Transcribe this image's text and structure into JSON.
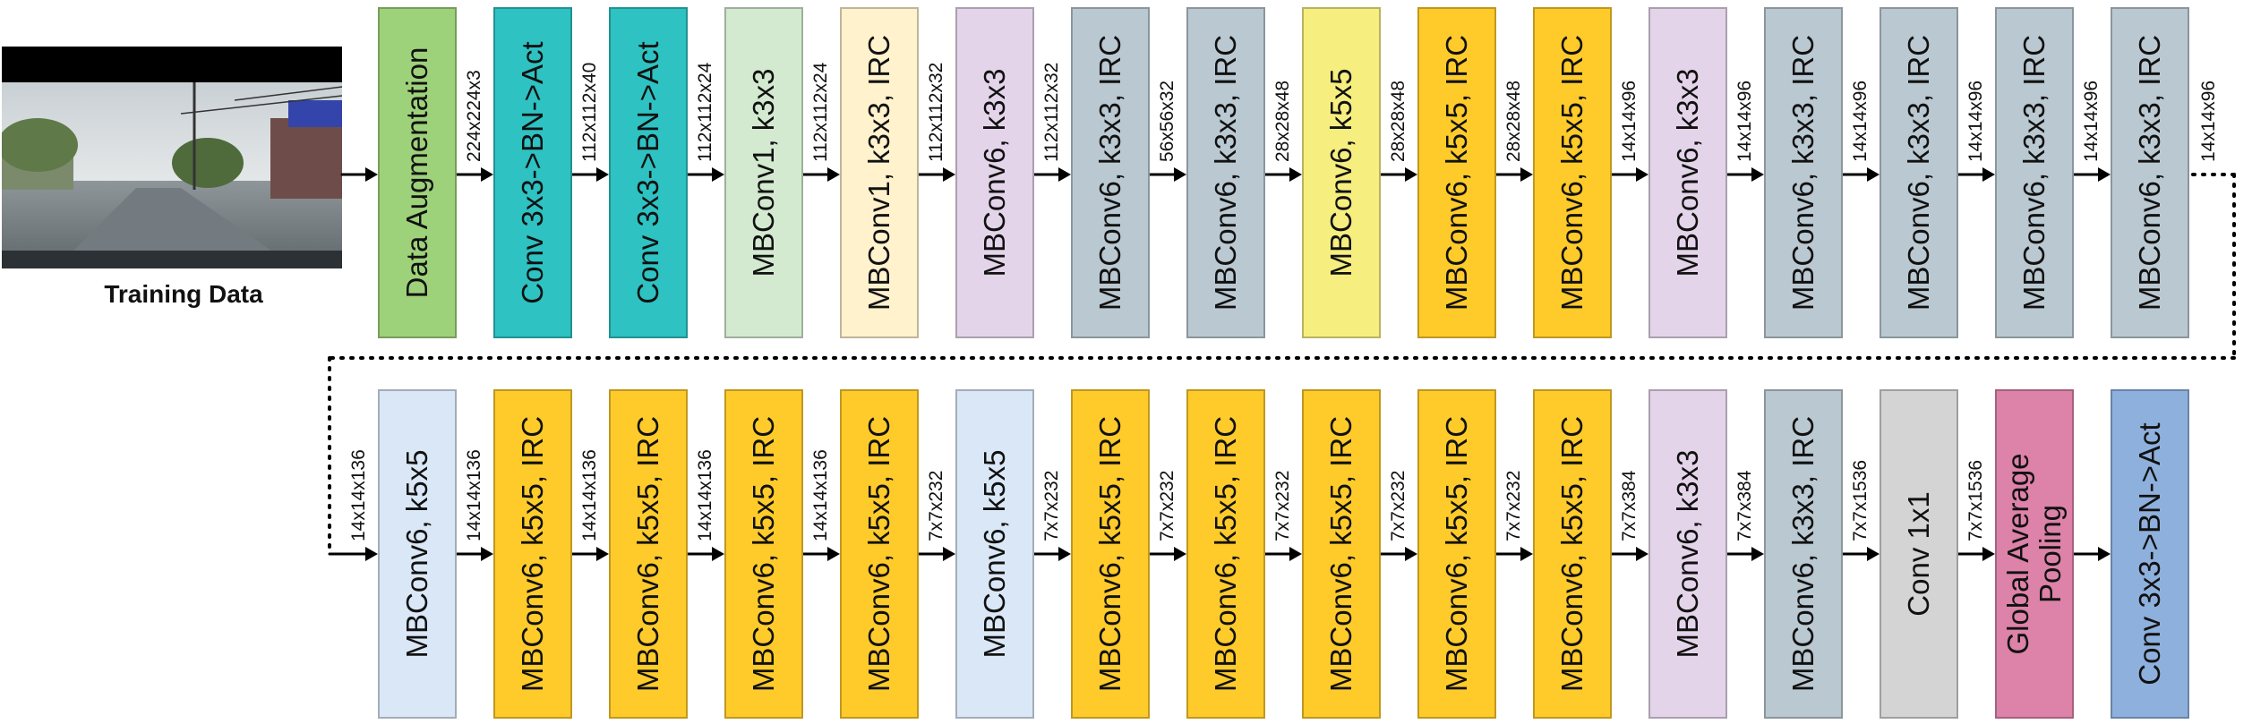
{
  "diagram": {
    "training_label": "Training Data",
    "photo_icon": "road-scene-image",
    "colors": {
      "green": "#9ed27a",
      "teal": "#2ec2c2",
      "mint": "#d3ead0",
      "cream": "#fff2cd",
      "lavender": "#e4d4ea",
      "slate": "#bac8d1",
      "yellow": "#f6ef7f",
      "orange": "#ffcb2b",
      "lightblue": "#dae7f6",
      "gray": "#d4d4d4",
      "pink": "#dd82a8",
      "steelblue": "#8eb0dc"
    },
    "rows": [
      {
        "blocks": [
          {
            "label": "Data Augmentation",
            "color": "green",
            "dim": ""
          },
          {
            "label": "Conv 3x3->BN->Act",
            "color": "teal",
            "dim": "224x224x3"
          },
          {
            "label": "Conv 3x3->BN->Act",
            "color": "teal",
            "dim": "112x112x40"
          },
          {
            "label": "MBConv1, k3x3",
            "color": "mint",
            "dim": "112x112x24"
          },
          {
            "label": "MBConv1, k3x3, IRC",
            "color": "cream",
            "dim": "112x112x24"
          },
          {
            "label": "MBConv6, k3x3",
            "color": "lavender",
            "dim": "112x112x32"
          },
          {
            "label": "MBConv6, k3x3, IRC",
            "color": "slate",
            "dim": "112x112x32"
          },
          {
            "label": "MBConv6, k3x3, IRC",
            "color": "slate",
            "dim": "56x56x32"
          },
          {
            "label": "MBConv6, k5x5",
            "color": "yellow",
            "dim": "28x28x48"
          },
          {
            "label": "MBConv6, k5x5, IRC",
            "color": "orange",
            "dim": "28x28x48"
          },
          {
            "label": "MBConv6, k5x5, IRC",
            "color": "orange",
            "dim": "28x28x48"
          },
          {
            "label": "MBConv6, k3x3",
            "color": "lavender",
            "dim": "14x14x96"
          },
          {
            "label": "MBConv6, k3x3, IRC",
            "color": "slate",
            "dim": "14x14x96"
          },
          {
            "label": "MBConv6, k3x3, IRC",
            "color": "slate",
            "dim": "14x14x96"
          },
          {
            "label": "MBConv6, k3x3, IRC",
            "color": "slate",
            "dim": "14x14x96"
          },
          {
            "label": "MBConv6, k3x3, IRC",
            "color": "slate",
            "dim": "14x14x96"
          }
        ]
      },
      {
        "blocks": [
          {
            "label": "MBConv6, k5x5",
            "color": "lightblue",
            "dim": "14x14x136"
          },
          {
            "label": "MBConv6, k5x5, IRC",
            "color": "orange",
            "dim": "14x14x136"
          },
          {
            "label": "MBConv6, k5x5, IRC",
            "color": "orange",
            "dim": "14x14x136"
          },
          {
            "label": "MBConv6, k5x5, IRC",
            "color": "orange",
            "dim": "14x14x136"
          },
          {
            "label": "MBConv6, k5x5, IRC",
            "color": "orange",
            "dim": "14x14x136"
          },
          {
            "label": "MBConv6, k5x5",
            "color": "lightblue",
            "dim": "7x7x232"
          },
          {
            "label": "MBConv6, k5x5, IRC",
            "color": "orange",
            "dim": "7x7x232"
          },
          {
            "label": "MBConv6, k5x5, IRC",
            "color": "orange",
            "dim": "7x7x232"
          },
          {
            "label": "MBConv6, k5x5, IRC",
            "color": "orange",
            "dim": "7x7x232"
          },
          {
            "label": "MBConv6, k5x5, IRC",
            "color": "orange",
            "dim": "7x7x232"
          },
          {
            "label": "MBConv6, k5x5, IRC",
            "color": "orange",
            "dim": "7x7x232"
          },
          {
            "label": "MBConv6, k3x3",
            "color": "lavender",
            "dim": "7x7x384"
          },
          {
            "label": "MBConv6, k3x3, IRC",
            "color": "slate",
            "dim": "7x7x384"
          },
          {
            "label": "Conv 1x1",
            "color": "gray",
            "dim": "7x7x1536"
          },
          {
            "label": "Global Average Pooling",
            "color": "pink",
            "dim": "7x7x1536"
          },
          {
            "label": "Conv 3x3->BN->Act",
            "color": "steelblue",
            "dim": ""
          }
        ]
      }
    ]
  }
}
